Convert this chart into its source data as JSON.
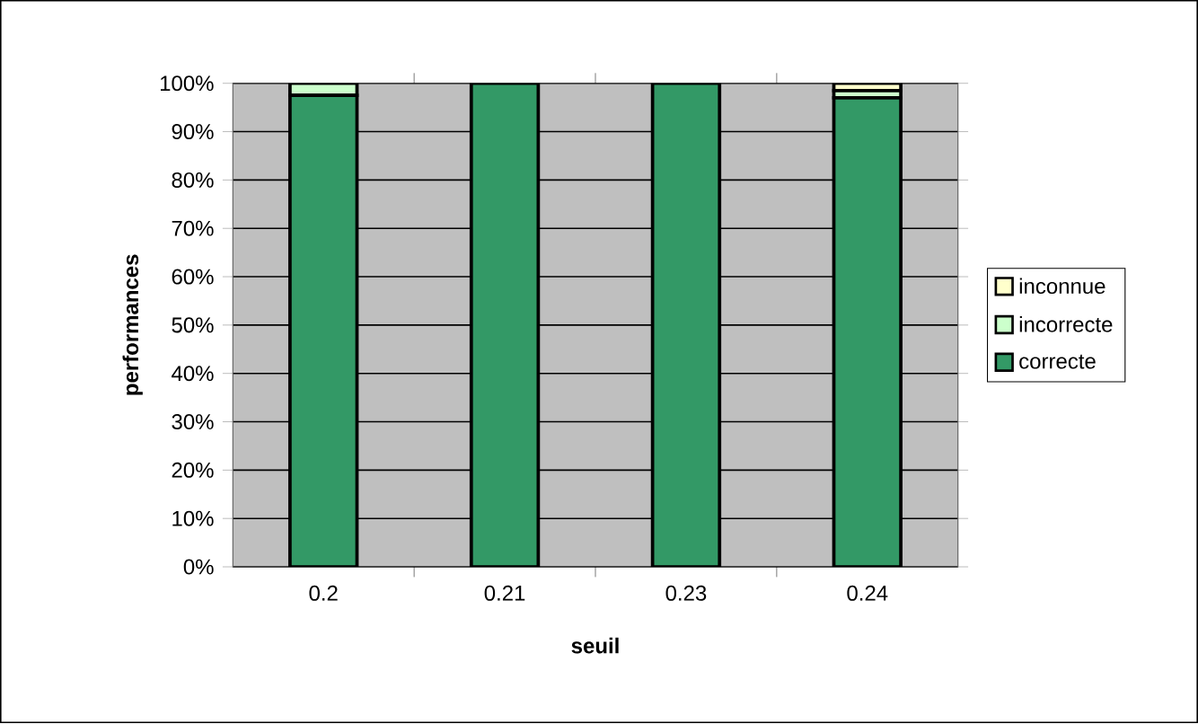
{
  "chart_data": {
    "type": "bar",
    "stacked": true,
    "xlabel": "seuil",
    "ylabel": "performances",
    "categories": [
      "0.2",
      "0.21",
      "0.23",
      "0.24"
    ],
    "series": [
      {
        "name": "correcte",
        "color": "#339966",
        "values": [
          97.5,
          100,
          100,
          97
        ]
      },
      {
        "name": "incorrecte",
        "color": "#ccffcc",
        "values": [
          2.5,
          0,
          0,
          1.5
        ]
      },
      {
        "name": "inconnue",
        "color": "#ffffcc",
        "values": [
          0,
          0,
          0,
          1.5
        ]
      }
    ],
    "ylim": [
      0,
      100
    ],
    "yticks": [
      {
        "value": 0,
        "label": "0%"
      },
      {
        "value": 10,
        "label": "10%"
      },
      {
        "value": 20,
        "label": "20%"
      },
      {
        "value": 30,
        "label": "30%"
      },
      {
        "value": 40,
        "label": "40%"
      },
      {
        "value": 50,
        "label": "50%"
      },
      {
        "value": 60,
        "label": "60%"
      },
      {
        "value": 70,
        "label": "70%"
      },
      {
        "value": 80,
        "label": "80%"
      },
      {
        "value": 90,
        "label": "90%"
      },
      {
        "value": 100,
        "label": "100%"
      }
    ],
    "legend": "right",
    "grid": "y"
  }
}
